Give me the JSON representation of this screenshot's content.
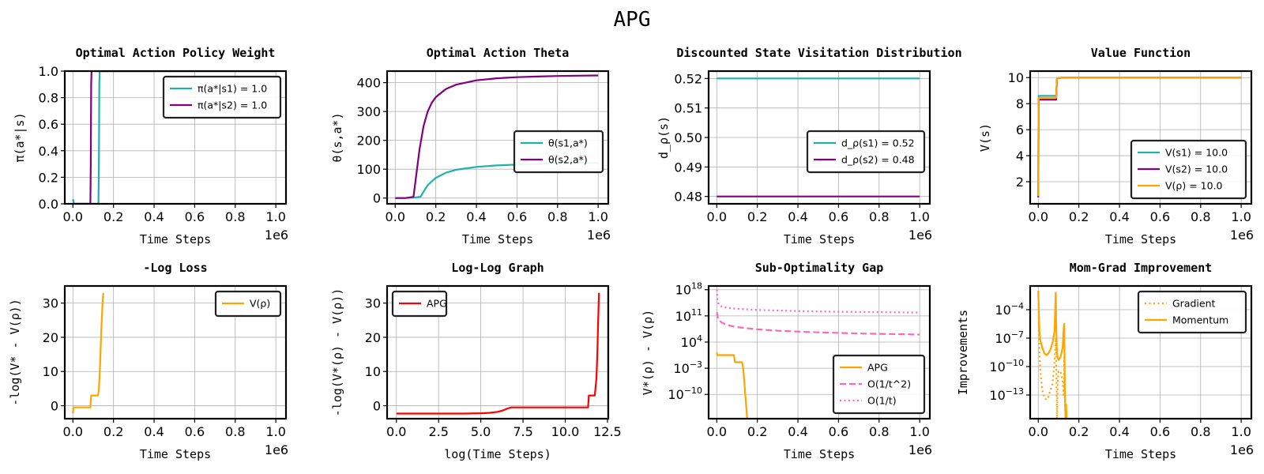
{
  "figure_title": "APG",
  "chart_data": [
    {
      "id": "p1",
      "type": "line",
      "title": "Optimal Action Policy Weight",
      "xlabel": "Time Steps",
      "ylabel": "π(a*|s)",
      "xlim": [
        -40000,
        1050000
      ],
      "ylim": [
        0,
        1
      ],
      "x_ticks": [
        0,
        200000,
        400000,
        600000,
        800000,
        1000000
      ],
      "x_tick_labels": [
        "0.0",
        "0.2",
        "0.4",
        "0.6",
        "0.8",
        "1.0"
      ],
      "x_offset_label": "1e6",
      "y_ticks": [
        0,
        0.2,
        0.4,
        0.6,
        0.8,
        1.0
      ],
      "y_tick_labels": [
        "0.0",
        "0.2",
        "0.4",
        "0.6",
        "0.8",
        "1.0"
      ],
      "grid": true,
      "legend_position": "top-right",
      "series": [
        {
          "name": "π(a*|s1) = 1.0",
          "color": "#20b2aa",
          "style": "solid",
          "x": [
            0,
            2000,
            4000,
            60000,
            100000,
            126000,
            128000,
            130000,
            132000,
            1000000
          ],
          "y": [
            0.02,
            0.03,
            0.0,
            0.0,
            0.0,
            0.0,
            0.3,
            0.9,
            1.0,
            1.0
          ]
        },
        {
          "name": "π(a*|s2) = 1.0",
          "color": "#800080",
          "style": "solid",
          "x": [
            0,
            60000,
            86000,
            88000,
            90000,
            92000,
            1000000
          ],
          "y": [
            0.0,
            0.0,
            0.0,
            0.3,
            0.9,
            1.0,
            1.0
          ]
        }
      ]
    },
    {
      "id": "p2",
      "type": "line",
      "title": "Optimal Action Theta",
      "xlabel": "Time Steps",
      "ylabel": "θ(s,a*)",
      "xlim": [
        -40000,
        1050000
      ],
      "ylim": [
        -20,
        440
      ],
      "x_ticks": [
        0,
        200000,
        400000,
        600000,
        800000,
        1000000
      ],
      "x_tick_labels": [
        "0.0",
        "0.2",
        "0.4",
        "0.6",
        "0.8",
        "1.0"
      ],
      "x_offset_label": "1e6",
      "y_ticks": [
        0,
        100,
        200,
        300,
        400
      ],
      "y_tick_labels": [
        "0",
        "100",
        "200",
        "300",
        "400"
      ],
      "grid": true,
      "legend_position": "center-right",
      "series": [
        {
          "name": "θ(s1,a*)",
          "color": "#20b2aa",
          "style": "solid",
          "x": [
            0,
            50000,
            100000,
            125000,
            140000,
            160000,
            200000,
            250000,
            300000,
            400000,
            500000,
            600000,
            700000,
            800000,
            900000,
            1000000
          ],
          "y": [
            0,
            0,
            2,
            5,
            22,
            45,
            70,
            88,
            98,
            108,
            113,
            116,
            118,
            120,
            121,
            122
          ]
        },
        {
          "name": "θ(s2,a*)",
          "color": "#800080",
          "style": "solid",
          "x": [
            0,
            50000,
            90000,
            100000,
            120000,
            140000,
            160000,
            180000,
            200000,
            250000,
            300000,
            400000,
            500000,
            600000,
            700000,
            800000,
            900000,
            1000000
          ],
          "y": [
            0,
            0,
            4,
            60,
            170,
            250,
            300,
            330,
            350,
            378,
            393,
            408,
            415,
            419,
            421,
            423,
            424,
            425
          ]
        }
      ]
    },
    {
      "id": "p3",
      "type": "line",
      "title": "Discounted State Visitation Distribution",
      "xlabel": "Time Steps",
      "ylabel": "d_ρ(s)",
      "xlim": [
        -40000,
        1050000
      ],
      "ylim": [
        0.4775,
        0.5225
      ],
      "x_ticks": [
        0,
        200000,
        400000,
        600000,
        800000,
        1000000
      ],
      "x_tick_labels": [
        "0.0",
        "0.2",
        "0.4",
        "0.6",
        "0.8",
        "1.0"
      ],
      "x_offset_label": "1e6",
      "y_ticks": [
        0.48,
        0.49,
        0.5,
        0.51,
        0.52
      ],
      "y_tick_labels": [
        "0.48",
        "0.49",
        "0.50",
        "0.51",
        "0.52"
      ],
      "grid": true,
      "legend_position": "center-right",
      "series": [
        {
          "name": "d_ρ(s1) = 0.52",
          "color": "#20b2aa",
          "style": "solid",
          "x": [
            0,
            1000000
          ],
          "y": [
            0.52,
            0.52
          ]
        },
        {
          "name": "d_ρ(s2) = 0.48",
          "color": "#800080",
          "style": "solid",
          "x": [
            0,
            1000000
          ],
          "y": [
            0.48,
            0.48
          ]
        }
      ]
    },
    {
      "id": "p4",
      "type": "line",
      "title": "Value Function",
      "xlabel": "Time Steps",
      "ylabel": "V(s)",
      "xlim": [
        -40000,
        1050000
      ],
      "ylim": [
        0.3,
        10.5
      ],
      "x_ticks": [
        0,
        200000,
        400000,
        600000,
        800000,
        1000000
      ],
      "x_tick_labels": [
        "0.0",
        "0.2",
        "0.4",
        "0.6",
        "0.8",
        "1.0"
      ],
      "x_offset_label": "1e6",
      "y_ticks": [
        2,
        4,
        6,
        8,
        10
      ],
      "y_tick_labels": [
        "2",
        "4",
        "6",
        "8",
        "10"
      ],
      "grid": true,
      "legend_position": "bottom-right",
      "series": [
        {
          "name": "V(s1) = 10.0",
          "color": "#20b2aa",
          "style": "solid",
          "x": [
            0,
            1500,
            3000,
            88000,
            92000,
            95000,
            120000,
            140000,
            1000000
          ],
          "y": [
            1.0,
            8.6,
            8.6,
            8.6,
            9.9,
            9.95,
            10.0,
            10.0,
            10.0
          ]
        },
        {
          "name": "V(s2) = 10.0",
          "color": "#800080",
          "style": "solid",
          "x": [
            0,
            1500,
            3000,
            88000,
            92000,
            95000,
            120000,
            140000,
            1000000
          ],
          "y": [
            0.8,
            8.3,
            8.3,
            8.3,
            9.9,
            9.95,
            10.0,
            10.0,
            10.0
          ]
        },
        {
          "name": "V(ρ) = 10.0",
          "color": "#ffa500",
          "style": "solid",
          "x": [
            0,
            1500,
            3000,
            88000,
            92000,
            95000,
            120000,
            140000,
            1000000
          ],
          "y": [
            0.9,
            8.45,
            8.45,
            8.45,
            9.9,
            9.95,
            10.0,
            10.0,
            10.0
          ]
        }
      ]
    },
    {
      "id": "p5",
      "type": "line",
      "title": "-Log Loss",
      "xlabel": "Time Steps",
      "ylabel": "-log(V* - V(ρ))",
      "xlim": [
        -40000,
        1050000
      ],
      "ylim": [
        -3.8,
        35
      ],
      "x_ticks": [
        0,
        200000,
        400000,
        600000,
        800000,
        1000000
      ],
      "x_tick_labels": [
        "0.0",
        "0.2",
        "0.4",
        "0.6",
        "0.8",
        "1.0"
      ],
      "x_offset_label": "1e6",
      "y_ticks": [
        0,
        10,
        20,
        30
      ],
      "y_tick_labels": [
        "0",
        "10",
        "20",
        "30"
      ],
      "grid": true,
      "legend_position": "top-right",
      "series": [
        {
          "name": "V(ρ)",
          "color": "#ffa500",
          "style": "solid",
          "x": [
            0,
            2000,
            4000,
            86000,
            90000,
            124000,
            128000,
            134000,
            140000,
            146000,
            150000
          ],
          "y": [
            -2.3,
            -0.6,
            -0.5,
            -0.5,
            3.0,
            3.0,
            5.0,
            12.0,
            22.0,
            30.0,
            33.0
          ]
        }
      ]
    },
    {
      "id": "p6",
      "type": "line",
      "title": "Log-Log Graph",
      "xlabel": "log(Time Steps)",
      "ylabel": "-log(V*(ρ) - V(ρ))",
      "xlim": [
        -0.55,
        12.55
      ],
      "ylim": [
        -3.8,
        35
      ],
      "x_ticks": [
        0,
        2.5,
        5.0,
        7.5,
        10.0,
        12.5
      ],
      "x_tick_labels": [
        "0.0",
        "2.5",
        "5.0",
        "7.5",
        "10.0",
        "12.5"
      ],
      "x_offset_label": "",
      "y_ticks": [
        0,
        10,
        20,
        30
      ],
      "y_tick_labels": [
        "0",
        "10",
        "20",
        "30"
      ],
      "grid": true,
      "legend_position": "top-left",
      "series": [
        {
          "name": "APG",
          "color": "#ff0000",
          "style": "solid",
          "x": [
            0,
            2,
            4,
            5,
            5.5,
            6,
            6.3,
            6.6,
            6.8,
            7,
            9,
            11.35,
            11.4,
            11.6,
            11.75,
            11.85,
            11.9,
            11.95,
            12.0
          ],
          "y": [
            -2.3,
            -2.3,
            -2.3,
            -2.2,
            -2.1,
            -1.8,
            -1.4,
            -0.8,
            -0.5,
            -0.5,
            -0.5,
            -0.5,
            3.0,
            3.0,
            3.0,
            8.0,
            15.0,
            25.0,
            33.0
          ]
        }
      ]
    },
    {
      "id": "p7",
      "type": "line",
      "title": "Sub-Optimality Gap",
      "xlabel": "Time Steps",
      "ylabel": "V*(ρ) - V(ρ)",
      "xlim": [
        -40000,
        1050000
      ],
      "y_scale": "log",
      "ylim_log10": [
        -16.5,
        19
      ],
      "x_ticks": [
        0,
        200000,
        400000,
        600000,
        800000,
        1000000
      ],
      "x_tick_labels": [
        "0.0",
        "0.2",
        "0.4",
        "0.6",
        "0.8",
        "1.0"
      ],
      "x_offset_label": "1e6",
      "y_ticks_log10": [
        -10,
        -3,
        4,
        11,
        18
      ],
      "y_tick_bases": [
        "10",
        "10",
        "10",
        "10",
        "10"
      ],
      "y_tick_exps": [
        "−10",
        "−3",
        "4",
        "11",
        "18"
      ],
      "grid": true,
      "legend_position": "bottom-right",
      "series": [
        {
          "name": "APG",
          "color": "#ffa500",
          "style": "solid",
          "x_log_y": true,
          "x": [
            0,
            2000,
            5000,
            85000,
            90000,
            125000,
            130000,
            135000,
            140000,
            145000,
            150000
          ],
          "log10y": [
            1.2,
            0.5,
            0.5,
            0.5,
            -1.4,
            -1.4,
            -3.0,
            -6.0,
            -9.5,
            -13.0,
            -16.5
          ]
        },
        {
          "name": "O(1/t^2)",
          "color": "#ff69b4",
          "style": "dashed",
          "log10y_formula": "c - 2*log10(t)",
          "c": 18.0,
          "x": [
            1000,
            2000,
            4000,
            7000,
            10000,
            20000,
            40000,
            70000,
            100000,
            200000,
            300000,
            400000,
            500000,
            600000,
            700000,
            800000,
            900000,
            1000000
          ],
          "log10y": [
            12.0,
            11.4,
            10.8,
            10.3,
            10.0,
            9.4,
            8.8,
            8.3,
            8.0,
            7.4,
            7.05,
            6.8,
            6.6,
            6.45,
            6.3,
            6.2,
            6.1,
            6.0
          ]
        },
        {
          "name": "O(1/t)",
          "color": "#ff69b4",
          "style": "dotted",
          "x": [
            1000,
            2000,
            4000,
            7000,
            10000,
            20000,
            40000,
            70000,
            100000,
            200000,
            300000,
            400000,
            500000,
            600000,
            700000,
            800000,
            900000,
            1000000
          ],
          "log10y": [
            18.0,
            16.5,
            15.2,
            14.5,
            14.1,
            13.6,
            13.3,
            13.05,
            12.9,
            12.6,
            12.45,
            12.3,
            12.2,
            12.12,
            12.05,
            12.0,
            11.95,
            11.9
          ]
        }
      ]
    },
    {
      "id": "p8",
      "type": "line",
      "title": "Mom-Grad Improvement",
      "xlabel": "Time Steps",
      "ylabel": "Improvements",
      "xlim": [
        -40000,
        1050000
      ],
      "y_scale": "log",
      "ylim_log10": [
        -15.5,
        -1.5
      ],
      "x_ticks": [
        0,
        200000,
        400000,
        600000,
        800000,
        1000000
      ],
      "x_tick_labels": [
        "0.0",
        "0.2",
        "0.4",
        "0.6",
        "0.8",
        "1.0"
      ],
      "x_offset_label": "1e6",
      "y_ticks_log10": [
        -13,
        -10,
        -7,
        -4
      ],
      "y_tick_bases": [
        "10",
        "10",
        "10",
        "10"
      ],
      "y_tick_exps": [
        "−13",
        "−10",
        "−7",
        "−4"
      ],
      "grid": true,
      "legend_position": "top-right",
      "series": [
        {
          "name": "Gradient",
          "color": "#ffa500",
          "style": "dotted",
          "x": [
            0,
            5000,
            10000,
            20000,
            30000,
            40000,
            50000,
            60000,
            70000,
            80000,
            86000,
            89000,
            92000,
            95000,
            100000,
            110000,
            120000,
            125000,
            128000,
            132000,
            136000,
            140000
          ],
          "log10y": [
            -2.0,
            -8.0,
            -10.5,
            -12.5,
            -13.3,
            -13.5,
            -13.2,
            -12.5,
            -11.8,
            -9.5,
            -7.0,
            -10.0,
            -15.5,
            -12.0,
            -10.5,
            -10.5,
            -11.5,
            -13.0,
            -9.0,
            -14.5,
            -15.5,
            -15.5
          ]
        },
        {
          "name": "Momentum",
          "color": "#ffa500",
          "style": "solid",
          "x": [
            0,
            3000,
            6000,
            10000,
            20000,
            30000,
            40000,
            50000,
            60000,
            70000,
            80000,
            86000,
            89000,
            92000,
            95000,
            100000,
            110000,
            120000,
            125000,
            128000,
            131000,
            134000,
            137000,
            140000
          ],
          "log10y": [
            -2.0,
            -4.5,
            -6.3,
            -7.2,
            -8.0,
            -8.6,
            -8.8,
            -8.6,
            -8.2,
            -7.5,
            -6.3,
            -2.2,
            -6.0,
            -8.5,
            -9.0,
            -9.3,
            -9.0,
            -8.0,
            -6.0,
            -5.5,
            -12.5,
            -15.5,
            -14.0,
            -15.5
          ]
        }
      ]
    }
  ]
}
